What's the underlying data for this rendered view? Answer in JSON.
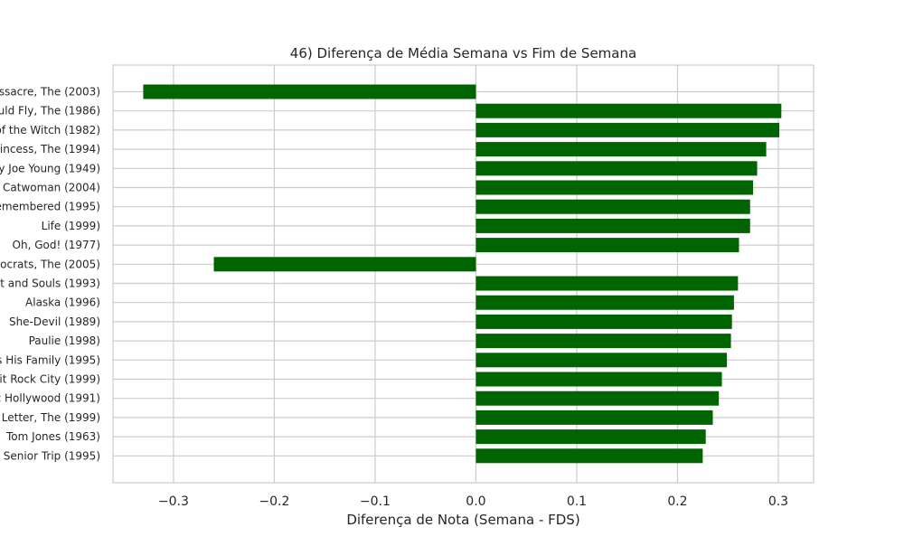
{
  "chart_data": {
    "type": "bar",
    "orientation": "horizontal",
    "title": "46) Diferença de Média Semana vs Fim de Semana",
    "xlabel": "Diferença de Nota (Semana - FDS)",
    "ylabel": "",
    "xlim": [
      -0.36,
      0.335
    ],
    "xticks": [
      -0.3,
      -0.2,
      -0.1,
      0.0,
      0.1,
      0.2,
      0.3
    ],
    "xtick_labels": [
      "−0.3",
      "−0.2",
      "−0.1",
      "0.0",
      "0.1",
      "0.2",
      "0.3"
    ],
    "grid": true,
    "bar_color": "#006400",
    "categories": [
      "assacre, The (2003)",
      "ould Fly, The (1986)",
      "n of the Witch (1982)",
      "Princess, The (1994)",
      "ty Joe Young (1949)",
      "Catwoman (2004)",
      "Remembered (1995)",
      "Life (1999)",
      "Oh, God! (1977)",
      "stocrats, The (2005)",
      "art and Souls (1993)",
      "Alaska (1996)",
      "She-Devil (1989)",
      "Paulie (1998)",
      "es His Family (1995)",
      "roit Rock City (1999)",
      "oc Hollywood (1991)",
      "ve Letter, The (1999)",
      "Tom Jones (1963)",
      "'s Senior Trip (1995)"
    ],
    "values": [
      -0.33,
      0.303,
      0.301,
      0.288,
      0.279,
      0.275,
      0.272,
      0.272,
      0.261,
      -0.26,
      0.26,
      0.256,
      0.254,
      0.253,
      0.249,
      0.244,
      0.241,
      0.235,
      0.228,
      0.225
    ]
  }
}
